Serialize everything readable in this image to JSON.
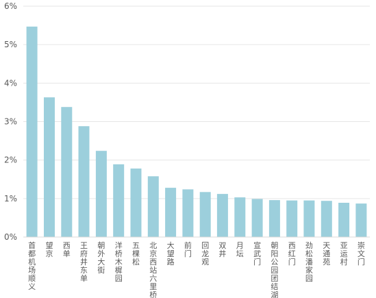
{
  "chart_data": {
    "type": "bar",
    "title": "",
    "xlabel": "",
    "ylabel": "",
    "ylim": [
      0,
      6
    ],
    "y_ticks": [
      "0%",
      "1%",
      "2%",
      "3%",
      "4%",
      "5%",
      "6%"
    ],
    "grid": "horizontal",
    "bar_color": "#9ccfdc",
    "categories": [
      "首都机场顺义",
      "望京",
      "西单",
      "王府井东单",
      "朝外大街",
      "洋桥木樨园",
      "五棵松",
      "北京西站六里桥",
      "大望路",
      "前门",
      "回龙观",
      "双井",
      "月坛",
      "宣武门",
      "朝阳公园团结湖",
      "西红门",
      "劲松潘家园",
      "天通苑",
      "亚运村",
      "崇文门"
    ],
    "values": [
      5.47,
      3.63,
      3.38,
      2.88,
      2.24,
      1.89,
      1.78,
      1.58,
      1.28,
      1.24,
      1.17,
      1.12,
      1.03,
      0.99,
      0.96,
      0.95,
      0.95,
      0.94,
      0.89,
      0.87
    ],
    "unit": "%"
  }
}
